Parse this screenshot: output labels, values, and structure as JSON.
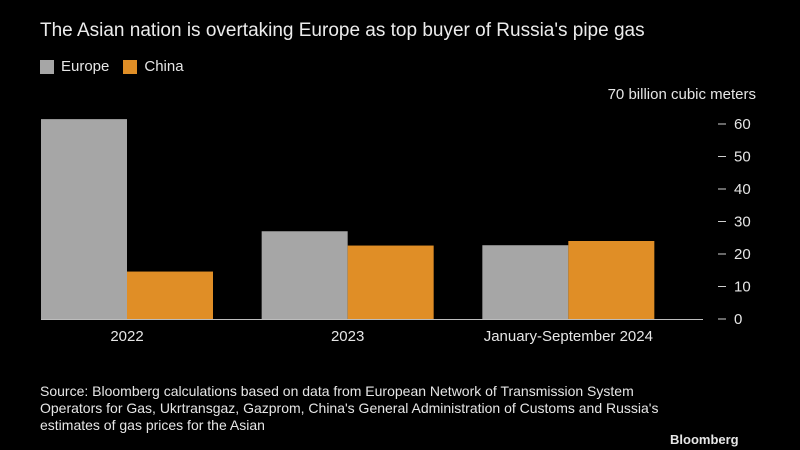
{
  "chart_data": {
    "type": "bar",
    "title": "The Asian nation is overtaking Europe as top buyer of Russia's pipe gas",
    "unit_label": "70 billion cubic meters",
    "categories": [
      "2022",
      "2023",
      "January-September 2024"
    ],
    "series": [
      {
        "name": "Europe",
        "color": "#a6a6a6",
        "values": [
          61.5,
          27,
          22.7
        ]
      },
      {
        "name": "China",
        "color": "#e08e26",
        "values": [
          14.6,
          22.6,
          24
        ]
      }
    ],
    "y_ticks": [
      0,
      10,
      20,
      30,
      40,
      50,
      60
    ],
    "ylim": [
      0,
      70
    ],
    "xlabel": "",
    "ylabel": "billion cubic meters",
    "grid": false,
    "legend_position": "top-left"
  },
  "source": "Source: Bloomberg calculations based on data from European Network of Transmission System Operators for Gas, Ukrtransgaz, Gazprom, China's General Administration of Customs and Russia's estimates of gas prices for the Asian",
  "footer_mark": "Bloomberg"
}
